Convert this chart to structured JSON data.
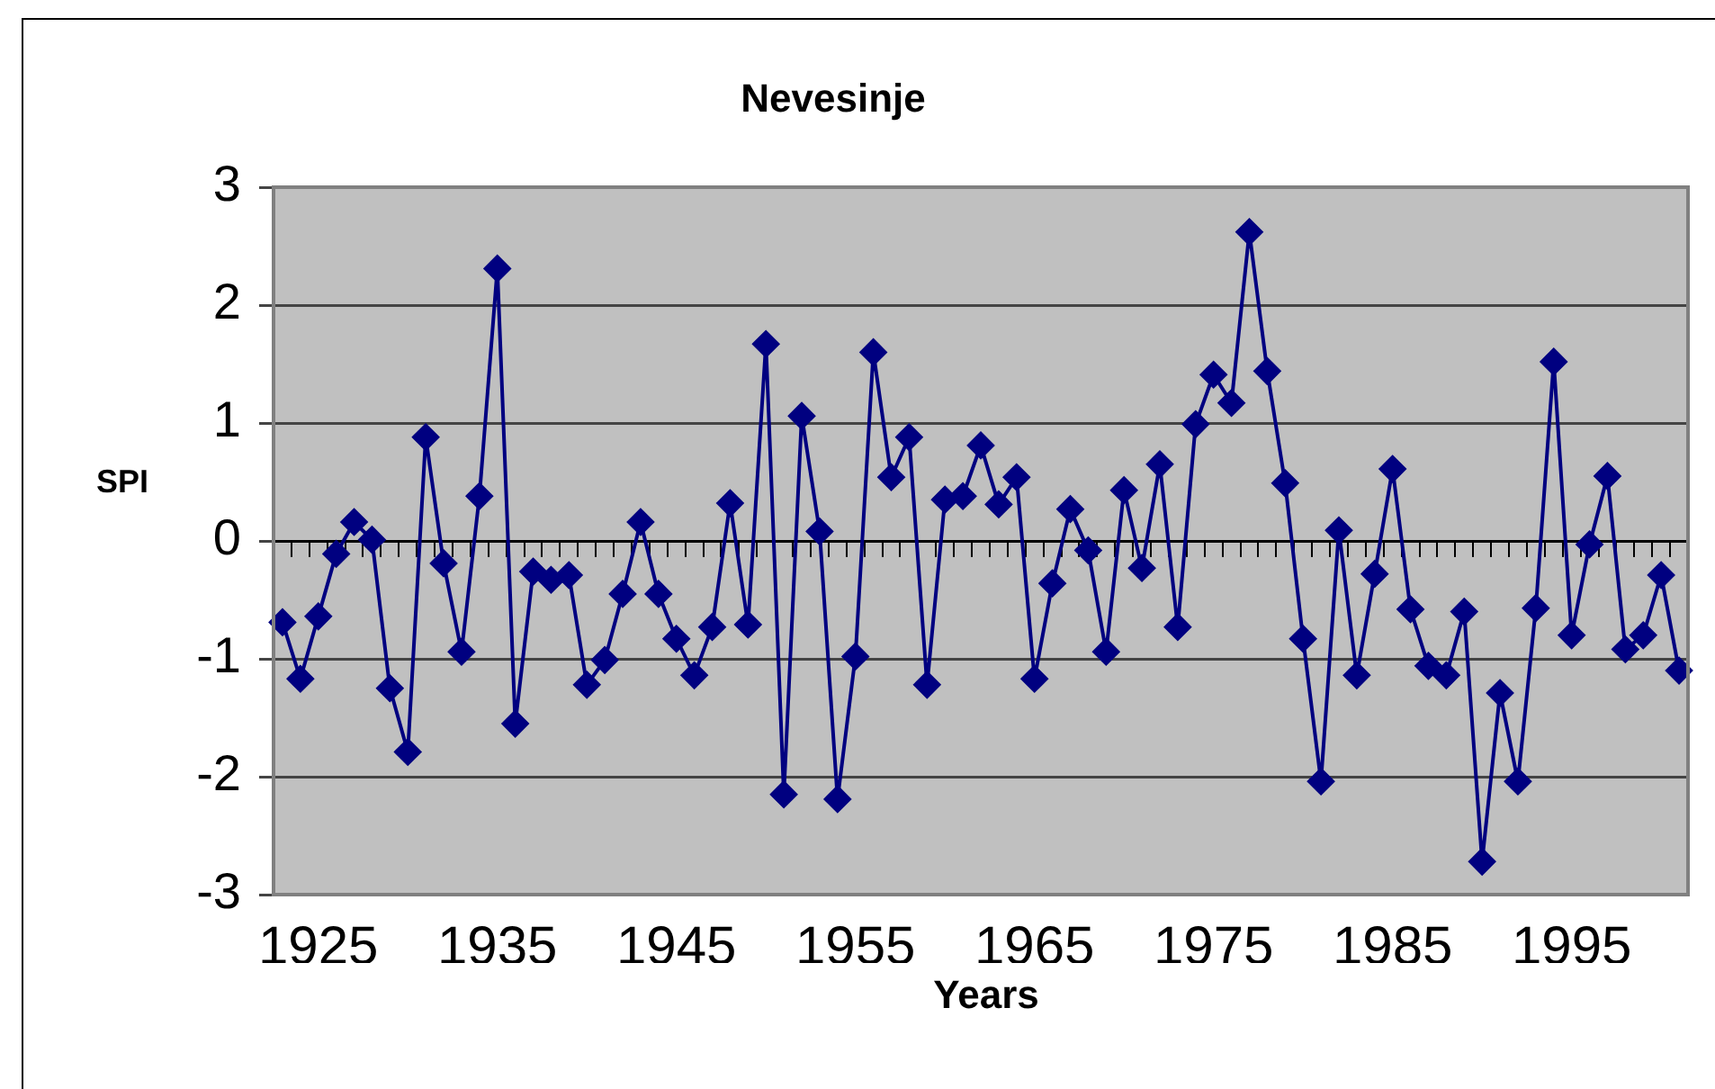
{
  "chart_data": {
    "type": "line",
    "title": "Nevesinje",
    "xlabel": "Years",
    "ylabel": "SPI",
    "categories": [
      null,
      null,
      "1925",
      null,
      null,
      null,
      null,
      null,
      null,
      null,
      null,
      null,
      "1935",
      null,
      null,
      null,
      null,
      null,
      null,
      null,
      null,
      null,
      "1945",
      null,
      null,
      null,
      null,
      null,
      null,
      null,
      null,
      null,
      "1955",
      null,
      null,
      null,
      null,
      null,
      null,
      null,
      null,
      null,
      "1965",
      null,
      null,
      null,
      null,
      null,
      null,
      null,
      null,
      null,
      "1975",
      null,
      null,
      null,
      null,
      null,
      null,
      null,
      null,
      null,
      "1985",
      null,
      null,
      null,
      null,
      null,
      null,
      null,
      null,
      null,
      "1995",
      null,
      null,
      null,
      null,
      null,
      null
    ],
    "series": [
      {
        "color": "#000080",
        "values": [
          -0.69,
          -1.17,
          -0.64,
          -0.11,
          0.16,
          0.01,
          -1.25,
          -1.79,
          0.88,
          -0.19,
          -0.94,
          0.38,
          2.31,
          -1.55,
          -0.26,
          -0.33,
          -0.29,
          -1.22,
          -1.01,
          -0.45,
          0.16,
          -0.45,
          -0.83,
          -1.14,
          -0.73,
          0.32,
          -0.71,
          1.67,
          -2.15,
          1.06,
          0.08,
          -2.19,
          -0.98,
          1.6,
          0.54,
          0.88,
          -1.22,
          0.35,
          0.38,
          0.81,
          0.31,
          0.54,
          -1.17,
          -0.36,
          0.27,
          -0.08,
          -0.94,
          0.43,
          -0.23,
          0.65,
          -0.73,
          0.99,
          1.41,
          1.17,
          2.62,
          1.44,
          0.49,
          -0.83,
          -2.04,
          0.09,
          -1.14,
          -0.28,
          0.61,
          -0.58,
          -1.06,
          -1.14,
          -0.6,
          -2.72,
          -1.29,
          -2.04,
          -0.57,
          1.52,
          -0.8,
          -0.03,
          0.55,
          -0.92,
          -0.8,
          -0.29,
          -1.1
        ]
      }
    ],
    "ylim": [
      -3,
      3
    ],
    "yticks": [
      -3,
      -2,
      -1,
      0,
      1,
      2,
      3
    ],
    "grid": "y",
    "marker": "diamond",
    "line_style": "solid",
    "legend": false
  }
}
